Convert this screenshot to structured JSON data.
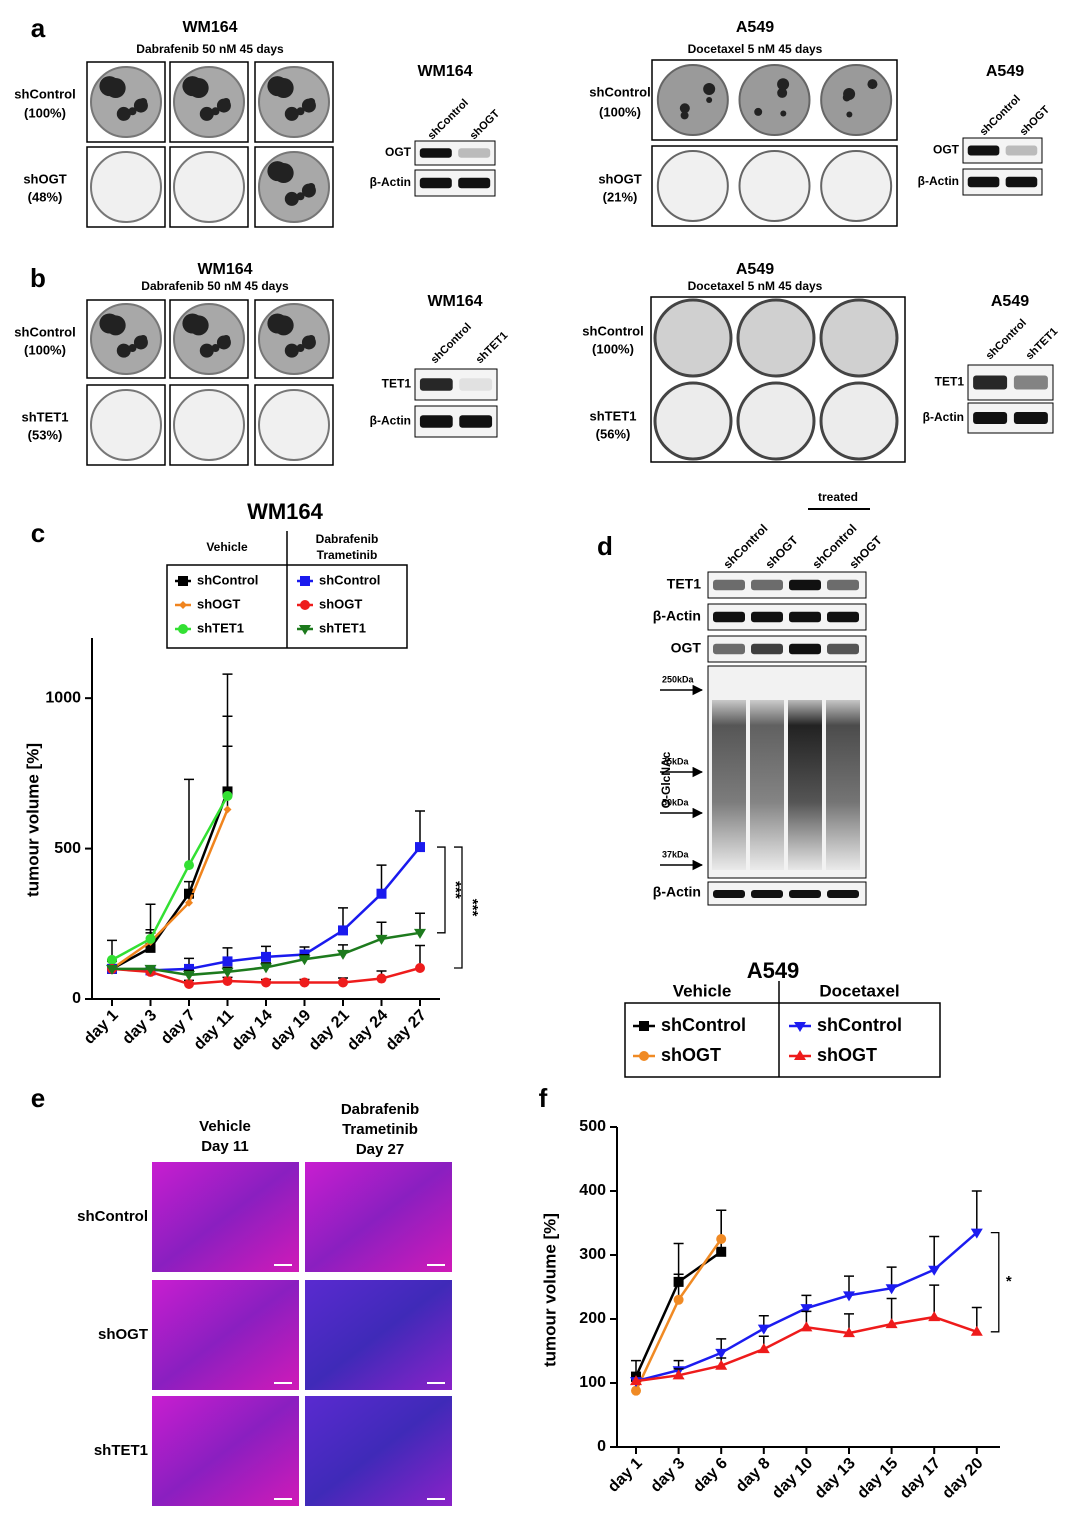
{
  "panel_labels": [
    "a",
    "b",
    "c",
    "d",
    "e",
    "f"
  ],
  "panel_a": {
    "left": {
      "title": "WM164",
      "subtitle": "Dabrafenib 50 nM 45 days",
      "rows": [
        {
          "name": "shControl",
          "pct": "(100%)"
        },
        {
          "name": "shOGT",
          "pct": "(48%)"
        }
      ],
      "blot": {
        "title": "WM164",
        "lanes": [
          "shControl",
          "shOGT"
        ],
        "bands": [
          "OGT",
          "β-Actin"
        ]
      }
    },
    "right": {
      "title": "A549",
      "subtitle": "Docetaxel 5 nM 45 days",
      "rows": [
        {
          "name": "shControl",
          "pct": "(100%)"
        },
        {
          "name": "shOGT",
          "pct": "(21%)"
        }
      ],
      "blot": {
        "title": "A549",
        "lanes": [
          "shControl",
          "shOGT"
        ],
        "bands": [
          "OGT",
          "β-Actin"
        ]
      }
    }
  },
  "panel_b": {
    "left": {
      "title": "WM164",
      "subtitle": "Dabrafenib 50 nM 45 days",
      "rows": [
        {
          "name": "shControl",
          "pct": "(100%)"
        },
        {
          "name": "shTET1",
          "pct": "(53%)"
        }
      ],
      "blot": {
        "title": "WM164",
        "lanes": [
          "shControl",
          "shTET1"
        ],
        "bands": [
          "TET1",
          "β-Actin"
        ]
      }
    },
    "right": {
      "title": "A549",
      "subtitle": "Docetaxel 5 nM 45 days",
      "rows": [
        {
          "name": "shControl",
          "pct": "(100%)"
        },
        {
          "name": "shTET1",
          "pct": "(56%)"
        }
      ],
      "blot": {
        "title": "A549",
        "lanes": [
          "shControl",
          "shTET1"
        ],
        "bands": [
          "TET1",
          "β-Actin"
        ]
      }
    }
  },
  "panel_d": {
    "treated": "treated",
    "lanes": [
      "shControl",
      "shOGT",
      "shControl",
      "shOGT"
    ],
    "bands": [
      "TET1",
      "β-Actin",
      "OGT"
    ],
    "blot_label": "O-GlcNAc",
    "ladder": [
      "250kDa",
      "75kDa",
      "50kDa",
      "37kDa"
    ],
    "bottom_band": "β-Actin"
  },
  "panel_e": {
    "columns": [
      [
        "Vehicle",
        "Day 11"
      ],
      [
        "Dabrafenib",
        "Trametinib",
        "Day 27"
      ]
    ],
    "rows": [
      "shControl",
      "shOGT",
      "shTET1"
    ]
  },
  "chart_data": [
    {
      "type": "line",
      "title": "WM164",
      "y_label": "tumour volume [%]",
      "categories": [
        "day 1",
        "day 3",
        "day 7",
        "day 11",
        "day 14",
        "day 19",
        "day 21",
        "day 24",
        "day 27"
      ],
      "ylim": [
        0,
        1200
      ],
      "yticks": [
        0,
        500,
        1000
      ],
      "legend_groups": [
        [
          "Vehicle"
        ],
        [
          "Dabrafenib",
          "Trametinib"
        ]
      ],
      "annotations": [
        "***",
        "***"
      ],
      "series": [
        {
          "name": "shControl",
          "color": "#000000",
          "marker": "square",
          "values": [
            100,
            170,
            350,
            690,
            null,
            null,
            null,
            null,
            null
          ],
          "errors": [
            30,
            50,
            40,
            250,
            null,
            null,
            null,
            null,
            null
          ]
        },
        {
          "name": "shOGT",
          "color": "#f0841e",
          "marker": "diamond",
          "values": [
            100,
            190,
            320,
            630,
            null,
            null,
            null,
            null,
            null
          ],
          "errors": [
            25,
            40,
            30,
            210,
            null,
            null,
            null,
            null,
            null
          ]
        },
        {
          "name": "shTET1",
          "color": "#33e033",
          "marker": "circle",
          "values": [
            130,
            200,
            445,
            675,
            null,
            null,
            null,
            null,
            null
          ],
          "errors": [
            65,
            115,
            285,
            405,
            null,
            null,
            null,
            null,
            null
          ]
        },
        {
          "name": "shControl",
          "color": "#1a1aee",
          "marker": "square",
          "values": [
            100,
            95,
            100,
            125,
            140,
            148,
            228,
            350,
            505
          ],
          "errors": [
            10,
            15,
            35,
            45,
            35,
            25,
            75,
            95,
            120
          ]
        },
        {
          "name": "shOGT",
          "color": "#ee1c1c",
          "marker": "circle",
          "values": [
            100,
            90,
            50,
            60,
            55,
            55,
            55,
            68,
            103
          ],
          "errors": [
            10,
            10,
            12,
            12,
            10,
            10,
            15,
            25,
            75
          ]
        },
        {
          "name": "shTET1",
          "color": "#1d7a1d",
          "marker": "triangle-down",
          "values": [
            100,
            100,
            80,
            90,
            105,
            132,
            150,
            200,
            220
          ],
          "errors": [
            10,
            10,
            15,
            15,
            15,
            15,
            30,
            55,
            65
          ]
        }
      ]
    },
    {
      "type": "line",
      "title": "A549",
      "y_label": "tumour volume [%]",
      "categories": [
        "day 1",
        "day 3",
        "day 6",
        "day 8",
        "day 10",
        "day 13",
        "day 15",
        "day 17",
        "day 20"
      ],
      "ylim": [
        0,
        500
      ],
      "yticks": [
        0,
        100,
        200,
        300,
        400,
        500
      ],
      "legend_groups": [
        [
          "Vehicle"
        ],
        [
          "Docetaxel"
        ]
      ],
      "annotations": [
        "*"
      ],
      "series": [
        {
          "name": "shControl",
          "color": "#000000",
          "marker": "square",
          "values": [
            110,
            258,
            305,
            null,
            null,
            null,
            null,
            null,
            null
          ],
          "errors": [
            25,
            60,
            65,
            null,
            null,
            null,
            null,
            null,
            null
          ]
        },
        {
          "name": "shOGT",
          "color": "#f08a24",
          "marker": "circle",
          "values": [
            88,
            230,
            325,
            null,
            null,
            null,
            null,
            null,
            null
          ],
          "errors": [
            15,
            40,
            45,
            null,
            null,
            null,
            null,
            null,
            null
          ]
        },
        {
          "name": "shControl",
          "color": "#1c1cf0",
          "marker": "triangle-down",
          "values": [
            103,
            120,
            147,
            185,
            217,
            237,
            248,
            277,
            335
          ],
          "errors": [
            10,
            15,
            22,
            20,
            20,
            30,
            33,
            52,
            65
          ]
        },
        {
          "name": "shOGT",
          "color": "#ee1b1b",
          "marker": "triangle",
          "values": [
            103,
            112,
            127,
            153,
            187,
            178,
            192,
            203,
            180
          ],
          "errors": [
            8,
            10,
            12,
            20,
            25,
            30,
            40,
            50,
            38
          ]
        }
      ]
    }
  ]
}
